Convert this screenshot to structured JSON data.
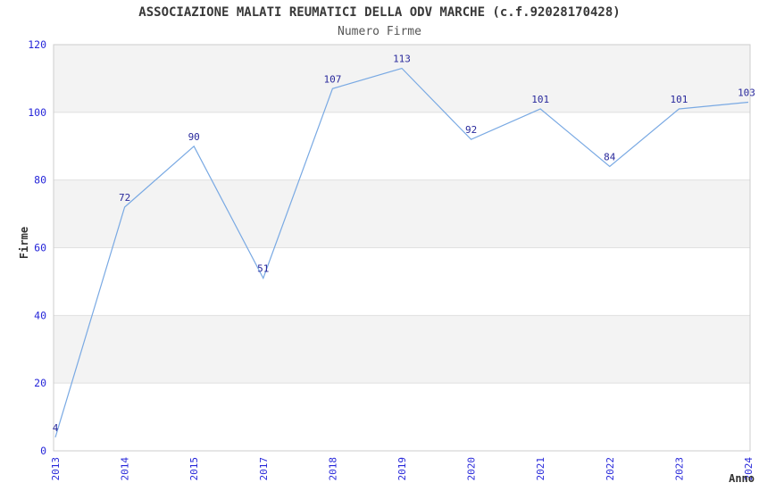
{
  "chart_data": {
    "type": "line",
    "title": "ASSOCIAZIONE MALATI REUMATICI DELLA ODV MARCHE (c.f.92028170428)",
    "subtitle": "Numero Firme",
    "xlabel": "Anno",
    "ylabel": "Firme",
    "categories": [
      "2013",
      "2014",
      "2015",
      "2017",
      "2018",
      "2019",
      "2020",
      "2021",
      "2022",
      "2023",
      "2024"
    ],
    "values": [
      4,
      72,
      90,
      51,
      107,
      113,
      92,
      101,
      84,
      101,
      103
    ],
    "ylim": [
      0,
      120
    ],
    "yticks": [
      0,
      20,
      40,
      60,
      80,
      100,
      120
    ],
    "grid": "horizontal-bands-alternating",
    "legend": "none",
    "markers": "none",
    "x_tick_rotation": -90,
    "colors": {
      "line": "#79a9e3",
      "data_label": "#29299c",
      "tick_label": "#2626d9",
      "band": "#f3f3f3",
      "gridline": "#e0e0e0",
      "plot_border": "#cccccc",
      "title": "#383838",
      "subtitle": "#555555",
      "axis_label": "#333333",
      "background": "#ffffff"
    }
  }
}
